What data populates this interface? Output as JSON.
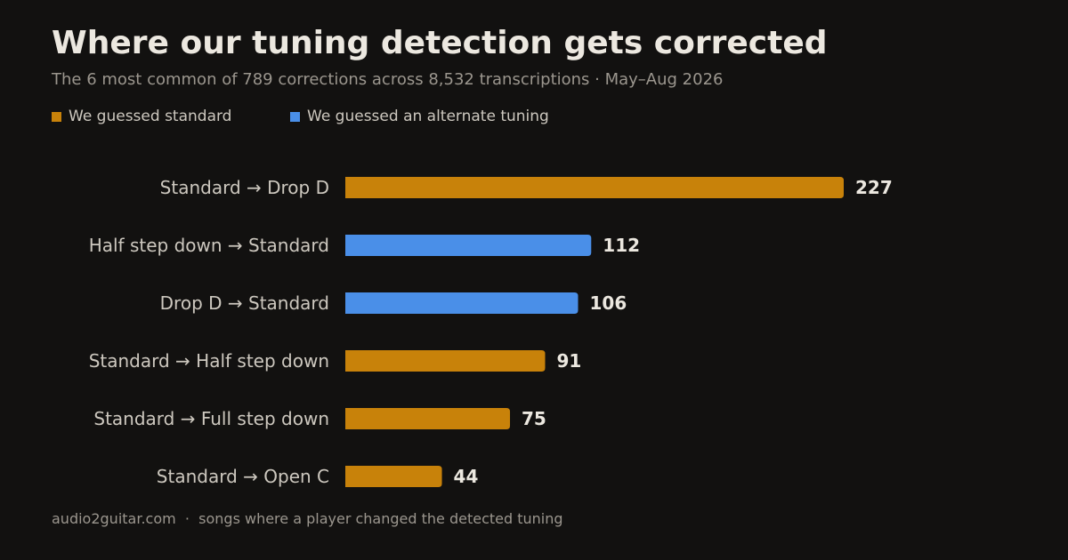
{
  "title": "Where our tuning detection gets corrected",
  "subtitle": "The 6 most common of 789 corrections across 8,532 transcriptions · May–Aug 2026",
  "legend": [
    {
      "label": "We guessed standard",
      "color": "#c8820a"
    },
    {
      "label": "We guessed an alternate tuning",
      "color": "#4a8fe8"
    }
  ],
  "footer": {
    "site": "audio2guitar.com",
    "separator": "·",
    "note": "songs where a player changed the detected tuning"
  },
  "chart_data": {
    "type": "bar",
    "orientation": "horizontal",
    "categories": [
      "Standard → Drop D",
      "Half step down → Standard",
      "Drop D → Standard",
      "Standard → Half step down",
      "Standard → Full step down",
      "Standard → Open C"
    ],
    "values": [
      227,
      112,
      106,
      91,
      75,
      44
    ],
    "groups": [
      0,
      1,
      1,
      0,
      0,
      0
    ],
    "data_labels": [
      "227",
      "112",
      "106",
      "91",
      "75",
      "44"
    ],
    "title": "",
    "xlabel": "",
    "ylabel": "",
    "xlim": [
      0,
      227
    ],
    "grid": false,
    "legend_position": "top-left"
  }
}
